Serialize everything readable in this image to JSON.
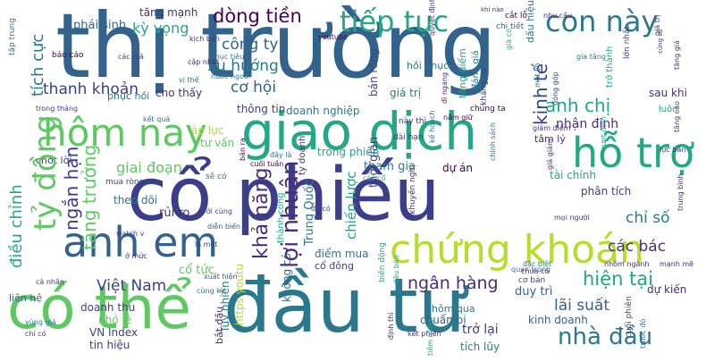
{
  "palette": {
    "navy": "#3b3f8a",
    "teal": "#2a788e",
    "blue": "#33638d",
    "green": "#5ec962",
    "sea": "#22a884",
    "lime": "#b5de2b",
    "purple": "#472d7b",
    "dark": "#440154"
  },
  "words": {
    "thi_truong": "thị trường",
    "co_phieu": "cổ phiếu",
    "dau_tu": "đầu tư",
    "co_the": "có thể",
    "giao_dich": "giao dịch",
    "chung_khoan": "chứng khoán",
    "anh_em": "anh em",
    "hom_nay": "hôm nay",
    "ho_tro": "hỗ trợ",
    "tiep_tuc": "tiếp tục",
    "con_nay": "con này",
    "dong_tien": "dòng tiền",
    "cong_ty": "công ty",
    "xu_huong": "xu hướng",
    "co_hoi": "cơ hội",
    "hien_tai": "hiện tại",
    "nha_dau": "nhà đầu",
    "lai_suat": "lãi suất",
    "ngan_hang": "ngân hàng",
    "viet_nam": "Việt Nam",
    "cac_bac": "các bác",
    "chi_so": "chỉ số",
    "nhan_dinh": "nhận định",
    "anh_chi": "anh chị",
    "thanh_khoan": "thanh khoản",
    "ky_vong": "kỳ vọng",
    "giai_doan": "giai đoạn",
    "loi_nhuan": "lợi nhuận",
    "ty_dong": "tỷ đồng",
    "kha_nang": "khả năng",
    "ngan_han": "ngắn hạn",
    "tang_truong": "tăng trưởng",
    "dieu_chinh": "điều chỉnh",
    "tich_cuc": "tích cực",
    "phai_sinh": "phái sinh",
    "tang_manh": "tăng mạnh",
    "kinh_te": "kinh tế",
    "doanh_nghiep": "doanh nghiệp",
    "thong_tin": "thông tin",
    "tham_gia": "tham gia",
    "du_an": "dự án",
    "trong_phien": "trong phiên",
    "tai_chinh": "tài chính",
    "phan_tich": "phân tích",
    "gia_tri": "giá trị",
    "dau_hieu": "dấu hiệu",
    "tam_ly": "tâm lý",
    "ap_luc": "áp lực",
    "tu_van": "tư vấn",
    "co_tuc": "cổ tức",
    "rui_ro": "rủi ro",
    "theo_doi": "theo dõi",
    "diem_mua": "điểm mua",
    "co_dong": "cổ đông",
    "duy_tri": "duy trì",
    "du_kien": "dự kiến",
    "kinh_doanh": "kinh doanh",
    "tro_lai": "trở lại",
    "tich_luy": "tích lũy",
    "chuan_bi": "chuẩn bị",
    "hom_qua": "hôm qua",
    "doanh_thu": "doanh thu",
    "vn_index": "VN Index",
    "tin_hieu": "tin hiệu",
    "nho_le": "nhỏ lẻ",
    "lien_he": "liên hệ",
    "bat_dau": "bắt đầu",
    "chot_loi": "chốt lời",
    "cho_thay": "cho thấy",
    "phuc_hoi": "phục hồi",
    "hoi_phuc": "hồi phục",
    "muc_tieu": "mục tiêu",
    "sau_khi": "sau khi",
    "luon": "luôn",
    "dai_han": "dài hạn",
    "nay_thi": "này thì",
    "chung_ta": "chúng ta",
    "thoi_gian": "thời gian",
    "chien_luoc": "chiến lược",
    "co_ban": "cơ bản",
    "quan_trong": "quan trọng",
    "trung_quoc": "Trung Quốc",
    "khong_co": "không có",
    "thanh_cong": "thành công",
    "ty_doanh": "ty doanh",
    "tuy_nhien": "Tuy nhiên",
    "https_youtu": "https youtu",
    "youtube": "youtube",
    "cac_co": "các cổ",
    "se_co": "sẽ có",
    "nam_giu": "nắm giữ",
    "danh_gia": "đánh giá",
    "cung_ky": "cùng kỳ",
    "tap_trung": "tập trung",
    "bao_cao": "báo cáo",
    "mua_rong": "mua ròng",
    "ban_rong": "bán ròng",
    "cat_lo": "cắt lỗ",
    "nhu_cau": "nhu cầu",
    "gia_tang": "gia tăng",
    "chi_tiet": "chi tiết",
    "luc_ban": "lực bán",
    "giam_diem": "giảm điểm",
    "vung_gia": "vùng giá",
    "chi_co": "chỉ có",
    "moi_nguoi": "mọi người",
    "manh_me": "mạnh mẽ",
    "nhom_nganh": "nhóm ngành",
    "dac_biet": "đặc biệt",
    "chua_co": "chưa có",
    "tiem_nang": "tiềm năng",
    "xuat_hien": "xuất hiện",
    "ca_nhan": "cá nhân",
    "muc": "ở mức",
    "khuyen_nghi": "khuyến nghị",
    "bien_dong": "biến động",
    "dau_bao": "dấu báo",
    "ket_qua": "kết quả",
    "kich_ban": "kịch bản",
    "cap_nhat": "cập nhật",
    "nuoc_ngoai": "nước ngoài",
    "cuoi_phien": "cuối phiên",
    "trong_thang": "trong tháng",
    "dien_bien": "diễn biến",
    "voi_cung": "với cùng",
    "tang_gia": "tăng giá",
    "vi_the": "vị thế",
    "gia_giam": "giá giảm",
    "khi_nao": "khi nào",
    "truoc_do": "trước đó",
    "cung_co": "củng cố",
    "quyet_dinh": "quyết định",
    "ke_hoach": "kế hoạch",
    "chinh_sach": "chính sách",
    "cuoi_tuan": "cuối tuần",
    "day_la": "đây là",
    "ban_ra": "bán ra",
    "cac_ma": "các mã",
    "di_ngang": "đi ngang",
    "khang_cu": "kháng cự",
    "mot_so": "một số",
    "dinh_thi": "định thì",
    "tang_diem": "tăng điểm",
    "gia_co": "giá có",
    "trung_binh": "trung bình",
    "tro_thanh": "trở thành",
    "lon_nhat": "lớn nhất",
    "vuot_dinh": "vượt đỉnh",
    "la_mot": "là một",
    "watch_v": "watch v",
    "da_co": "đã có",
    "ket_phien": "kết phiên",
    "gia_tri_2": "giá trị",
    "dong_gop": "đóng góp",
    "tang_cao": "tăng cao"
  }
}
